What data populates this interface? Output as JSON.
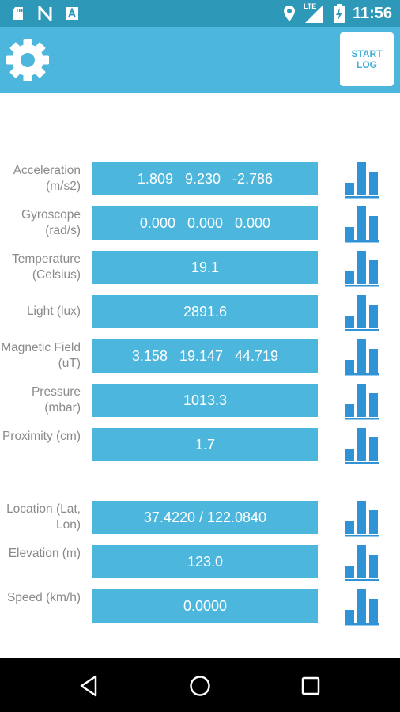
{
  "status_bar": {
    "time": "11:56",
    "network": "LTE",
    "left_icons": [
      "sd-card-icon",
      "n-icon",
      "a-icon"
    ]
  },
  "app_bar": {
    "start_log_label": "START LOG"
  },
  "sensors": [
    {
      "label": "Acceleration (m/s2)",
      "value": "1.809   9.230   -2.786"
    },
    {
      "label": "Gyroscope (rad/s)",
      "value": "0.000   0.000   0.000"
    },
    {
      "label": "Temperature (Celsius)",
      "value": "19.1"
    },
    {
      "label": "Light (lux)",
      "value": "2891.6"
    },
    {
      "label": "Magnetic Field (uT)",
      "value": "3.158   19.147   44.719"
    },
    {
      "label": "Pressure (mbar)",
      "value": "1013.3"
    },
    {
      "label": "Proximity (cm)",
      "value": "1.7"
    }
  ],
  "location": [
    {
      "label": "Location (Lat, Lon)",
      "value": "37.4220 / 122.0840"
    },
    {
      "label": "Elevation (m)",
      "value": "123.0"
    },
    {
      "label": "Speed (km/h)",
      "value": "0.0000"
    }
  ],
  "colors": {
    "status_bar": "#2d98b8",
    "app_bar": "#4db6dc",
    "value_box": "#4db6dc",
    "chart_icon": "#2f93d6",
    "label_text": "#8a8a8a"
  }
}
